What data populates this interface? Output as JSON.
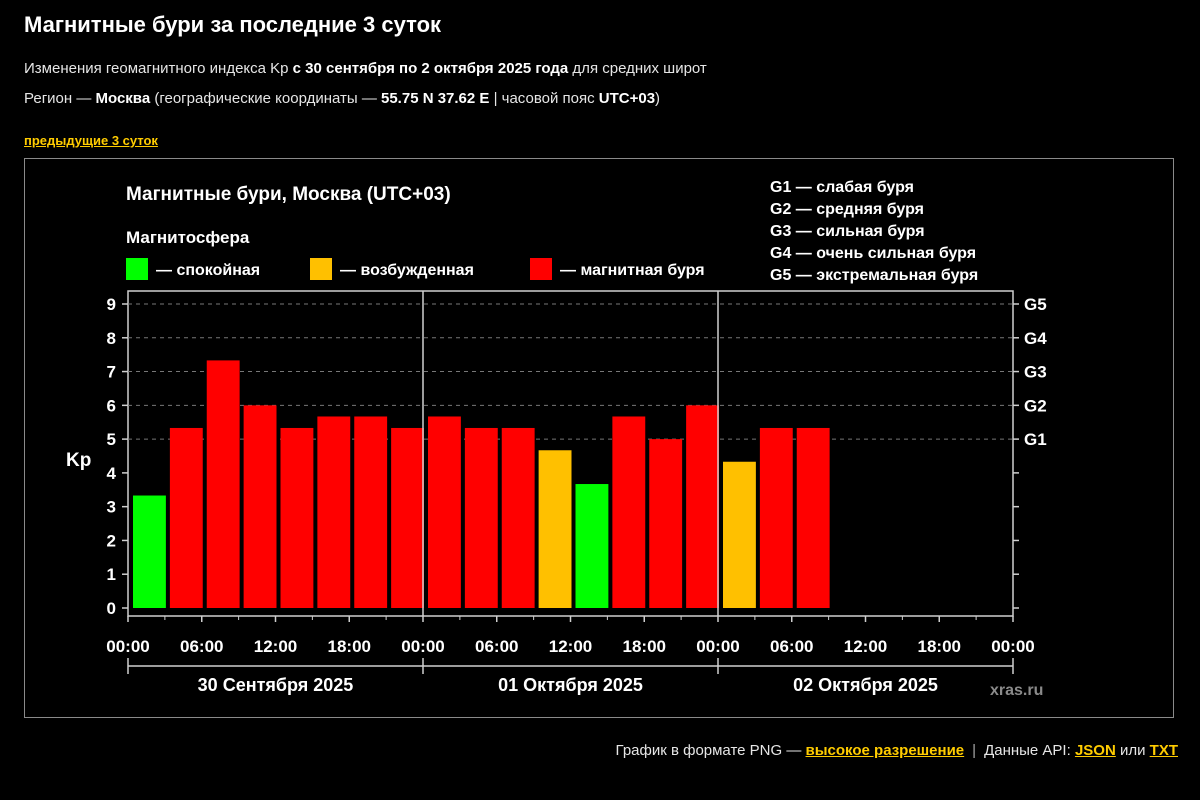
{
  "header": {
    "title": "Магнитные бури за последние 3 суток",
    "subtitle_prefix": "Изменения геомагнитного индекса Kp ",
    "subtitle_range": "с 30 сентября по 2 октября 2025 года",
    "subtitle_suffix": " для средних широт",
    "region_prefix": "Регион — ",
    "region_city": "Москва",
    "region_middle": " (географические координаты — ",
    "region_coords": "55.75 N 37.62 E",
    "region_sep": " | часовой пояс ",
    "region_tz": "UTC+03",
    "region_end": ")",
    "prev_link": "предыдущие 3 суток"
  },
  "chart_data": {
    "type": "bar",
    "title": "Магнитные бури, Москва (UTC+03)",
    "magnetosphere_label": "Магнитосфера",
    "legend": [
      {
        "label": "— спокойная",
        "color": "#00ff00"
      },
      {
        "label": "— возбужденная",
        "color": "#ffc000"
      },
      {
        "label": "— магнитная буря",
        "color": "#ff0000"
      }
    ],
    "storm_scale": [
      "G1 — слабая буря",
      "G2 — средняя буря",
      "G3 — сильная буря",
      "G4 — очень сильная буря",
      "G5 — экстремальная буря"
    ],
    "ylabel": "Kp",
    "ylim": [
      0,
      9
    ],
    "yticks": [
      0,
      1,
      2,
      3,
      4,
      5,
      6,
      7,
      8,
      9
    ],
    "g_levels": [
      {
        "label": "G1",
        "kp": 5
      },
      {
        "label": "G2",
        "kp": 6
      },
      {
        "label": "G3",
        "kp": 7
      },
      {
        "label": "G4",
        "kp": 8
      },
      {
        "label": "G5",
        "kp": 9
      }
    ],
    "grid": true,
    "x_ticks": [
      "00:00",
      "06:00",
      "12:00",
      "18:00",
      "00:00",
      "06:00",
      "12:00",
      "18:00",
      "00:00",
      "06:00",
      "12:00",
      "18:00",
      "00:00"
    ],
    "days": [
      "30 Сентября 2025",
      "01 Октября 2025",
      "02 Октября 2025"
    ],
    "bars": [
      {
        "start": "2025-09-30 00:00",
        "kp": 3.33,
        "status": "calm"
      },
      {
        "start": "2025-09-30 03:00",
        "kp": 5.33,
        "status": "storm"
      },
      {
        "start": "2025-09-30 06:00",
        "kp": 7.33,
        "status": "storm"
      },
      {
        "start": "2025-09-30 09:00",
        "kp": 6.0,
        "status": "storm"
      },
      {
        "start": "2025-09-30 12:00",
        "kp": 5.33,
        "status": "storm"
      },
      {
        "start": "2025-09-30 15:00",
        "kp": 5.67,
        "status": "storm"
      },
      {
        "start": "2025-09-30 18:00",
        "kp": 5.67,
        "status": "storm"
      },
      {
        "start": "2025-09-30 21:00",
        "kp": 5.33,
        "status": "storm"
      },
      {
        "start": "2025-10-01 00:00",
        "kp": 5.67,
        "status": "storm"
      },
      {
        "start": "2025-10-01 03:00",
        "kp": 5.33,
        "status": "storm"
      },
      {
        "start": "2025-10-01 06:00",
        "kp": 5.33,
        "status": "storm"
      },
      {
        "start": "2025-10-01 09:00",
        "kp": 4.67,
        "status": "active"
      },
      {
        "start": "2025-10-01 12:00",
        "kp": 3.67,
        "status": "calm"
      },
      {
        "start": "2025-10-01 15:00",
        "kp": 5.67,
        "status": "storm"
      },
      {
        "start": "2025-10-01 18:00",
        "kp": 5.0,
        "status": "storm"
      },
      {
        "start": "2025-10-01 21:00",
        "kp": 6.0,
        "status": "storm"
      },
      {
        "start": "2025-10-02 00:00",
        "kp": 4.33,
        "status": "active"
      },
      {
        "start": "2025-10-02 03:00",
        "kp": 5.33,
        "status": "storm"
      },
      {
        "start": "2025-10-02 06:00",
        "kp": 5.33,
        "status": "storm"
      }
    ],
    "status_colors": {
      "calm": "#00ff00",
      "active": "#ffc000",
      "storm": "#ff0000"
    },
    "watermark": "xras.ru"
  },
  "footer": {
    "png_text": "График в формате PNG — ",
    "hires_link": "высокое разрешение",
    "separator": "|",
    "api_text": "Данные API: ",
    "json_link": "JSON",
    "or_text": " или ",
    "txt_link": "TXT"
  }
}
